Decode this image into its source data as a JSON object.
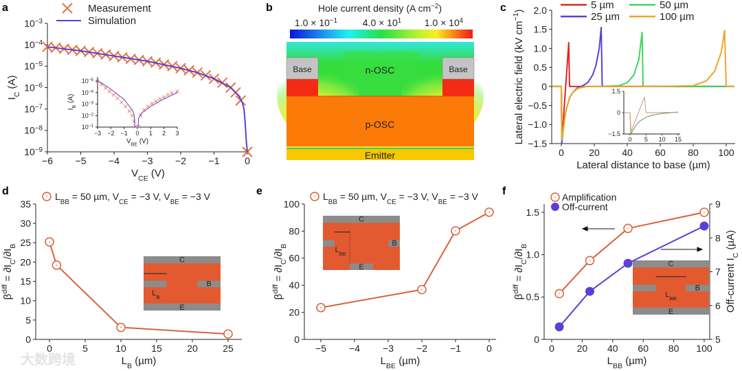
{
  "panel_labels": [
    "a",
    "b",
    "c",
    "d",
    "e",
    "f"
  ],
  "watermark": "大数跨境",
  "panel_b": {
    "title": "Hole current density (A cm^{−2})",
    "colorbar_labels": [
      "1.0 × 10^{−1}",
      "4.0 × 10^{1}",
      "1.0 × 10^{4}"
    ],
    "regions": {
      "base_left": "Base",
      "base_right": "Base",
      "n_osc": "n-OSC",
      "p_osc": "p-OSC",
      "emitter": "Emitter"
    }
  },
  "colors": {
    "measurement": "#e07448",
    "simulation": "#5a3fd0",
    "c_5": "#e02424",
    "c_25": "#5b3fd6",
    "c_50": "#3fd45c",
    "c_100": "#f0a42a",
    "amplification": "#d9623b",
    "offcurrent": "#5b3fd6",
    "schematic_body": "#e35a30",
    "schematic_metal": "#8c8c8c"
  },
  "chart_data": [
    {
      "id": "a",
      "type": "line",
      "yscale": "log",
      "xlabel": "V_{CE} (V)",
      "ylabel": "I_{C} (A)",
      "xlim": [
        -6,
        0
      ],
      "ylim": [
        1e-09,
        0.001
      ],
      "xticks": [
        -6,
        -5,
        -4,
        -3,
        -2,
        -1,
        0
      ],
      "xticklabels": [
        "−6",
        "−5",
        "−4",
        "−3",
        "−2",
        "−1",
        "0"
      ],
      "yticks": [
        0.001,
        0.0001,
        1e-05,
        1e-06,
        1e-07,
        1e-08,
        1e-09
      ],
      "yticklabels": [
        "10^{−3}",
        "10^{−4}",
        "10^{−5}",
        "10^{−6}",
        "10^{−7}",
        "10^{−8}",
        "10^{−9}"
      ],
      "legend": [
        "Measurement",
        "Simulation"
      ],
      "series": [
        {
          "name": "Measurement",
          "marker": "cross",
          "x": [
            -6,
            -5.75,
            -5.5,
            -5.25,
            -5,
            -4.75,
            -4.5,
            -4.25,
            -4,
            -3.75,
            -3.5,
            -3.25,
            -3,
            -2.75,
            -2.5,
            -2.25,
            -2,
            -1.75,
            -1.5,
            -1.25,
            -1,
            -0.75,
            -0.5,
            -0.35,
            -0.2,
            0
          ],
          "y": [
            8e-05,
            7.3e-05,
            6.5e-05,
            5.8e-05,
            5.2e-05,
            4.6e-05,
            4e-05,
            3.5e-05,
            3e-05,
            2.6e-05,
            2.2e-05,
            1.95e-05,
            1.7e-05,
            1.45e-05,
            1.2e-05,
            1e-05,
            8e-06,
            6.4e-06,
            5e-06,
            3.7e-06,
            2.6e-06,
            1.7e-06,
            1e-06,
            6e-07,
            2.5e-07,
            1e-09
          ]
        },
        {
          "name": "Simulation",
          "marker": "none",
          "x": [
            -6,
            -5,
            -4,
            -3,
            -2,
            -1.5,
            -1,
            -0.5,
            -0.25,
            -0.15,
            -0.1,
            -0.07,
            -0.05,
            -0.03,
            0
          ],
          "y": [
            8e-05,
            5.2e-05,
            3e-05,
            1.7e-05,
            8e-06,
            5e-06,
            2.6e-06,
            1e-06,
            4e-07,
            2e-07,
            1e-07,
            3e-08,
            1e-08,
            3e-09,
            1e-09
          ]
        }
      ],
      "inset": {
        "xlabel": "V_{BE} (V)",
        "ylabel": "I_{B} (A)",
        "xlim": [
          -3,
          3
        ],
        "ylim": [
          0,
          4
        ],
        "xticks": [
          -3,
          -2,
          -1,
          0,
          1,
          2,
          3
        ],
        "xticklabels": [
          "−3",
          "−2",
          "−1",
          "0",
          "1",
          "2",
          "3"
        ],
        "yticks": [
          4,
          3,
          2,
          1,
          0
        ],
        "yticklabels": [
          "10^{−5}",
          "10^{−4}",
          "10^{−3}",
          "10^{−2}",
          "10^{−1}"
        ],
        "series": [
          {
            "name": "Measurement",
            "marker": "smallcross",
            "x": [
              -3,
              -2.7,
              -2.4,
              -2.1,
              -1.8,
              -1.5,
              -1.2,
              -0.9,
              -0.6,
              -0.4,
              -0.25,
              -0.15,
              0.1,
              0.25,
              0.5,
              0.8,
              1.1,
              1.4,
              1.7,
              2,
              2.3,
              2.6,
              3
            ],
            "y": [
              4.0,
              3.7,
              3.4,
              3.1,
              2.8,
              2.5,
              2.15,
              1.8,
              1.4,
              1.0,
              0.5,
              0.05,
              0.05,
              1.0,
              1.5,
              1.8,
              2.05,
              2.25,
              2.45,
              2.6,
              2.8,
              2.95,
              3.1
            ]
          },
          {
            "name": "Simulation",
            "marker": "none",
            "x": [
              -3,
              -2,
              -1,
              -0.4,
              -0.25,
              -0.2,
              -0.1,
              0.05,
              0.1,
              0.3,
              1,
              2,
              3
            ],
            "y": [
              4.05,
              3.3,
              2.4,
              1.5,
              1.1,
              0.1,
              0,
              0,
              0.8,
              1.2,
              1.8,
              2.45,
              3.0
            ]
          }
        ]
      }
    },
    {
      "id": "c",
      "type": "line",
      "xlabel": "Lateral distance to base (µm)",
      "ylabel": "Lateral electric field (kV cm^{−1})",
      "xlim": [
        0,
        100
      ],
      "ylim": [
        -1.5,
        2.0
      ],
      "xticks": [
        0,
        20,
        40,
        60,
        80,
        100
      ],
      "xticklabels": [
        "0",
        "20",
        "40",
        "60",
        "80",
        "100"
      ],
      "yticks": [
        2.0,
        1.5,
        1.0,
        0.5,
        0,
        -0.5,
        -1.0,
        -1.5
      ],
      "yticklabels": [
        "2.0",
        "1.5",
        "1.0",
        "0.5",
        "0",
        "−0.5",
        "−1.0",
        "−1.5"
      ],
      "legend": [
        "5 µm",
        "50 µm",
        "25 µm",
        "100 µm"
      ],
      "series": [
        {
          "name": "5 µm",
          "x": [
            -5.5,
            0,
            0.3,
            4.5,
            5,
            105
          ],
          "y": [
            0,
            0,
            -1.45,
            1.15,
            0,
            0
          ]
        },
        {
          "name": "25 µm",
          "x": [
            -5.5,
            0,
            0.3,
            1,
            2,
            3,
            5,
            7,
            10,
            13,
            16,
            19,
            21,
            23,
            24.2,
            24.8,
            105
          ],
          "y": [
            0,
            0,
            -1.5,
            -1.2,
            -0.85,
            -0.6,
            -0.3,
            -0.15,
            -0.03,
            0.02,
            0.1,
            0.3,
            0.55,
            1.0,
            1.55,
            0,
            0
          ]
        },
        {
          "name": "50 µm",
          "x": [
            -5.5,
            0,
            0.3,
            1,
            2,
            3,
            5,
            7,
            10,
            15,
            25,
            35,
            40,
            44,
            47,
            49,
            49.6,
            105
          ],
          "y": [
            0,
            0,
            -1.42,
            -1.2,
            -0.85,
            -0.6,
            -0.3,
            -0.15,
            -0.05,
            0,
            0,
            0.02,
            0.1,
            0.3,
            0.7,
            1.42,
            0,
            0
          ]
        },
        {
          "name": "100 µm",
          "x": [
            -5.5,
            0,
            0.3,
            1,
            2,
            3,
            5,
            7,
            10,
            15,
            30,
            60,
            80,
            88,
            93,
            97,
            99,
            100,
            105
          ],
          "y": [
            0,
            0,
            -1.4,
            -1.2,
            -0.85,
            -0.6,
            -0.3,
            -0.15,
            -0.05,
            0,
            0,
            0,
            0.02,
            0.15,
            0.4,
            0.9,
            1.47,
            0,
            0
          ]
        }
      ],
      "inset": {
        "xlim": [
          0,
          15
        ],
        "ylim": [
          -1.5,
          1.5
        ],
        "xticks": [
          0,
          5,
          10,
          15
        ],
        "xticklabels": [
          "0",
          "5",
          "10",
          "15"
        ],
        "yticks": [
          1.5,
          0,
          -1.5
        ],
        "yticklabels": [
          "1.5",
          "0",
          "−1.5"
        ],
        "series": [
          {
            "name": "5 µm",
            "x": [
              -1.9,
              0,
              0.2,
              4.5,
              5,
              15
            ],
            "y": [
              0,
              0,
              -1.4,
              1.1,
              0,
              0.02
            ]
          },
          {
            "name": "others",
            "x": [
              -1.9,
              0,
              0.3,
              1,
              2,
              3,
              5,
              7,
              10,
              15
            ],
            "y": [
              0,
              0,
              -1.5,
              -1.2,
              -0.85,
              -0.6,
              -0.32,
              -0.17,
              -0.06,
              0.05
            ]
          }
        ]
      }
    },
    {
      "id": "d",
      "type": "line",
      "xlabel": "L_{B} (µm)",
      "ylabel": "β^{diff} = ∂I_{C}/∂I_{B}",
      "xlim": [
        0,
        25
      ],
      "ylim": [
        0,
        35
      ],
      "xticks": [
        0,
        5,
        10,
        15,
        20,
        25
      ],
      "xticklabels": [
        "0",
        "5",
        "10",
        "15",
        "20",
        "25"
      ],
      "yticks": [
        0,
        5,
        10,
        15,
        20,
        25,
        30,
        35
      ],
      "yticklabels": [
        "0",
        "5",
        "10",
        "15",
        "20",
        "25",
        "30",
        "35"
      ],
      "legend": [
        "L_{BB} = 50 µm, V_{CE} = −3 V, V_{BE} = −3 V"
      ],
      "series": [
        {
          "name": "β diff",
          "x": [
            0,
            1,
            10,
            25
          ],
          "y": [
            25.2,
            19.2,
            3.1,
            1.4
          ]
        }
      ],
      "schematic": {
        "top": "C",
        "right": "B",
        "bottom": "E",
        "dim": "L_{B}"
      }
    },
    {
      "id": "e",
      "type": "line",
      "xlabel": "L_{BE} (µm)",
      "ylabel": "β^{diff} = ∂I_{C}/∂I_{B}",
      "xlim": [
        -5,
        0
      ],
      "ylim": [
        0,
        100
      ],
      "xticks": [
        -5,
        -4,
        -3,
        -2,
        -1,
        0
      ],
      "xticklabels": [
        "−5",
        "−4",
        "−3",
        "−2",
        "−1",
        "0"
      ],
      "yticks": [
        0,
        20,
        40,
        60,
        80,
        100
      ],
      "yticklabels": [
        "0",
        "20",
        "40",
        "60",
        "80",
        "100"
      ],
      "legend": [
        "L_{BB} = 50 µm, V_{CE} = −3 V, V_{BE} = −3 V"
      ],
      "series": [
        {
          "name": "β diff",
          "x": [
            -5,
            -2,
            -1,
            0
          ],
          "y": [
            23.5,
            36.8,
            80.2,
            94
          ]
        }
      ],
      "schematic": {
        "top": "C",
        "right": "B",
        "bottom": "E",
        "dim": "L_{BE}"
      }
    },
    {
      "id": "f",
      "type": "line",
      "xlabel": "L_{BB} (µm)",
      "ylabel": "β^{diff} = ∂I_{C}/∂I_{B}",
      "ylabel_right": "Off-current I_{C} (µA)",
      "xlim": [
        0,
        100
      ],
      "ylim": [
        0,
        1.5
      ],
      "ylim_right": [
        5,
        9
      ],
      "xticks": [
        0,
        20,
        40,
        60,
        80,
        100
      ],
      "xticklabels": [
        "0",
        "20",
        "40",
        "60",
        "80",
        "100"
      ],
      "yticks": [
        0,
        0.5,
        1.0,
        1.5
      ],
      "yticklabels": [
        "0",
        "0.5",
        "1.0",
        "1.5"
      ],
      "yticks_right": [
        5,
        6,
        7,
        8,
        9
      ],
      "yticklabels_right": [
        "5",
        "6",
        "7",
        "8",
        "9"
      ],
      "legend": [
        "Amplification",
        "Off-current"
      ],
      "series": [
        {
          "name": "Amplification",
          "axis": "left",
          "x": [
            5,
            25,
            50,
            100
          ],
          "y": [
            0.54,
            0.93,
            1.31,
            1.5
          ]
        },
        {
          "name": "Off-current",
          "axis": "right",
          "x": [
            5,
            25,
            50,
            100
          ],
          "y": [
            5.37,
            6.42,
            7.25,
            8.35
          ]
        }
      ],
      "schematic": {
        "top": "C",
        "right": "B",
        "bottom": "E",
        "dim": "L_{BB}"
      }
    }
  ]
}
